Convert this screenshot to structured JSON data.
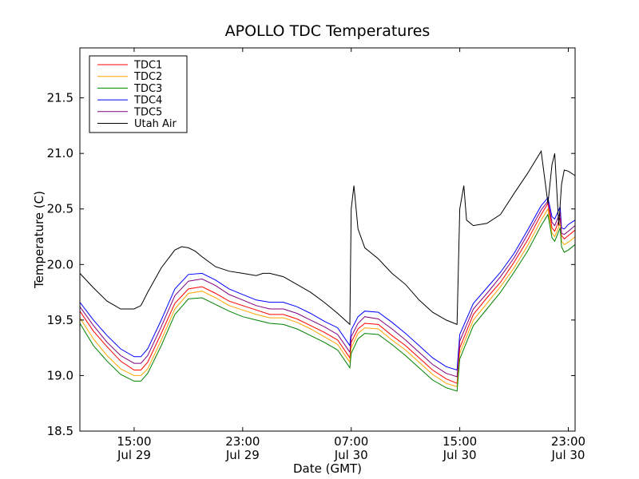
{
  "chart_data": {
    "type": "line",
    "title": "APOLLO TDC Temperatures",
    "xlabel": "Date (GMT)",
    "ylabel": "Temperature (C)",
    "x_unit": "hours since Jul 29 11:00 GMT",
    "xlim": [
      0,
      36.5
    ],
    "ylim": [
      18.5,
      21.95
    ],
    "y_ticks": [
      18.5,
      19.0,
      19.5,
      20.0,
      20.5,
      21.0,
      21.5
    ],
    "y_tick_labels": [
      "18.5",
      "19.0",
      "19.5",
      "20.0",
      "20.5",
      "21.0",
      "21.5"
    ],
    "x_ticks": [
      {
        "x": 4,
        "line1": "15:00",
        "line2": "Jul 29"
      },
      {
        "x": 12,
        "line1": "23:00",
        "line2": "Jul 29"
      },
      {
        "x": 20,
        "line1": "07:00",
        "line2": "Jul 30"
      },
      {
        "x": 28,
        "line1": "15:00",
        "line2": "Jul 30"
      },
      {
        "x": 36,
        "line1": "23:00",
        "line2": "Jul 30"
      }
    ],
    "legend_position": "top-left",
    "grid": false,
    "series": [
      {
        "name": "TDC1",
        "color": "#ff0000",
        "x": [
          0,
          1,
          2,
          3,
          4,
          4.5,
          5,
          6,
          7,
          8,
          9,
          10,
          11,
          12,
          13,
          14,
          15,
          16,
          17,
          18,
          19,
          19.9,
          20,
          20.5,
          21,
          22,
          23,
          24,
          25,
          26,
          27,
          27.8,
          28,
          29,
          30,
          31,
          32,
          33,
          34,
          34.5,
          34.8,
          35,
          35.4,
          35.5,
          35.7,
          36,
          36.5
        ],
        "y": [
          19.58,
          19.4,
          19.26,
          19.13,
          19.05,
          19.05,
          19.12,
          19.38,
          19.65,
          19.78,
          19.8,
          19.74,
          19.67,
          19.63,
          19.59,
          19.55,
          19.55,
          19.51,
          19.45,
          19.39,
          19.32,
          19.16,
          19.3,
          19.42,
          19.47,
          19.46,
          19.36,
          19.27,
          19.16,
          19.05,
          18.97,
          18.93,
          19.25,
          19.55,
          19.7,
          19.84,
          20.02,
          20.22,
          20.45,
          20.55,
          20.33,
          20.3,
          20.42,
          20.26,
          20.23,
          20.26,
          20.31
        ]
      },
      {
        "name": "TDC2",
        "color": "#ffa500",
        "x": [
          0,
          1,
          2,
          3,
          4,
          4.5,
          5,
          6,
          7,
          8,
          9,
          10,
          11,
          12,
          13,
          14,
          15,
          16,
          17,
          18,
          19,
          19.9,
          20,
          20.5,
          21,
          22,
          23,
          24,
          25,
          26,
          27,
          27.8,
          28,
          29,
          30,
          31,
          32,
          33,
          34,
          34.5,
          34.8,
          35,
          35.4,
          35.5,
          35.7,
          36,
          36.5
        ],
        "y": [
          19.52,
          19.33,
          19.18,
          19.06,
          19.0,
          19.0,
          19.06,
          19.32,
          19.6,
          19.74,
          19.76,
          19.7,
          19.63,
          19.59,
          19.55,
          19.52,
          19.52,
          19.48,
          19.42,
          19.35,
          19.28,
          19.12,
          19.25,
          19.38,
          19.43,
          19.42,
          19.32,
          19.23,
          19.12,
          19.01,
          18.93,
          18.9,
          19.2,
          19.5,
          19.65,
          19.8,
          19.97,
          20.17,
          20.4,
          20.5,
          20.28,
          20.25,
          20.37,
          20.21,
          20.18,
          20.2,
          20.25
        ]
      },
      {
        "name": "TDC3",
        "color": "#008000",
        "x": [
          0,
          1,
          2,
          3,
          4,
          4.5,
          5,
          6,
          7,
          8,
          9,
          10,
          11,
          12,
          13,
          14,
          15,
          16,
          17,
          18,
          19,
          19.9,
          20,
          20.5,
          21,
          22,
          23,
          24,
          25,
          26,
          27,
          27.8,
          28,
          29,
          30,
          31,
          32,
          33,
          34,
          34.5,
          34.8,
          35,
          35.4,
          35.5,
          35.7,
          36,
          36.5
        ],
        "y": [
          19.47,
          19.27,
          19.13,
          19.01,
          18.95,
          18.95,
          19.02,
          19.27,
          19.55,
          19.69,
          19.7,
          19.64,
          19.58,
          19.53,
          19.5,
          19.47,
          19.46,
          19.42,
          19.36,
          19.3,
          19.23,
          19.07,
          19.2,
          19.33,
          19.38,
          19.37,
          19.28,
          19.18,
          19.07,
          18.96,
          18.89,
          18.86,
          19.15,
          19.45,
          19.6,
          19.75,
          19.93,
          20.12,
          20.35,
          20.45,
          20.24,
          20.21,
          20.33,
          20.16,
          20.11,
          20.13,
          20.18
        ]
      },
      {
        "name": "TDC4",
        "color": "#0000ff",
        "x": [
          0,
          1,
          2,
          3,
          4,
          4.5,
          5,
          6,
          7,
          8,
          9,
          10,
          11,
          12,
          13,
          14,
          15,
          16,
          17,
          18,
          19,
          19.9,
          20,
          20.5,
          21,
          22,
          23,
          24,
          25,
          26,
          27,
          27.8,
          28,
          29,
          30,
          31,
          32,
          33,
          34,
          34.5,
          34.8,
          35,
          35.4,
          35.5,
          35.7,
          36,
          36.5
        ],
        "y": [
          19.66,
          19.5,
          19.36,
          19.24,
          19.17,
          19.17,
          19.24,
          19.5,
          19.78,
          19.91,
          19.92,
          19.86,
          19.78,
          19.73,
          19.68,
          19.66,
          19.66,
          19.62,
          19.56,
          19.49,
          19.43,
          19.27,
          19.41,
          19.53,
          19.58,
          19.57,
          19.48,
          19.38,
          19.27,
          19.16,
          19.08,
          19.05,
          19.37,
          19.65,
          19.79,
          19.93,
          20.1,
          20.31,
          20.53,
          20.6,
          20.43,
          20.41,
          20.52,
          20.33,
          20.32,
          20.36,
          20.4
        ]
      },
      {
        "name": "TDC5",
        "color": "#800080",
        "x": [
          0,
          1,
          2,
          3,
          4,
          4.5,
          5,
          6,
          7,
          8,
          9,
          10,
          11,
          12,
          13,
          14,
          15,
          16,
          17,
          18,
          19,
          19.9,
          20,
          20.5,
          21,
          22,
          23,
          24,
          25,
          26,
          27,
          27.8,
          28,
          29,
          30,
          31,
          32,
          33,
          34,
          34.5,
          34.8,
          35,
          35.4,
          35.5,
          35.7,
          36,
          36.5
        ],
        "y": [
          19.62,
          19.45,
          19.3,
          19.18,
          19.11,
          19.11,
          19.18,
          19.44,
          19.72,
          19.85,
          19.87,
          19.81,
          19.73,
          19.68,
          19.63,
          19.6,
          19.6,
          19.56,
          19.5,
          19.44,
          19.37,
          19.21,
          19.35,
          19.47,
          19.53,
          19.51,
          19.42,
          19.32,
          19.21,
          19.1,
          19.02,
          18.99,
          19.31,
          19.6,
          19.74,
          19.89,
          20.06,
          20.27,
          20.49,
          20.57,
          20.38,
          20.35,
          20.47,
          20.28,
          20.27,
          20.3,
          20.35
        ]
      },
      {
        "name": "Utah Air",
        "color": "#000000",
        "x": [
          0,
          1,
          2,
          3,
          4,
          4.5,
          5,
          6,
          7,
          7.5,
          8,
          8.5,
          9,
          10,
          11,
          12,
          13,
          13.5,
          14,
          15,
          16,
          17,
          18,
          19,
          19.9,
          20,
          20.2,
          20.5,
          21,
          22,
          23,
          24,
          25,
          26,
          27,
          27.8,
          28,
          28.3,
          28.5,
          29,
          30,
          31,
          32,
          33,
          34,
          34.5,
          34.8,
          35,
          35.3,
          35.5,
          35.7,
          36,
          36.5
        ],
        "y": [
          19.92,
          19.79,
          19.67,
          19.6,
          19.6,
          19.63,
          19.75,
          19.97,
          20.13,
          20.16,
          20.15,
          20.12,
          20.07,
          19.98,
          19.94,
          19.92,
          19.9,
          19.92,
          19.92,
          19.89,
          19.82,
          19.75,
          19.66,
          19.56,
          19.46,
          20.5,
          20.71,
          20.32,
          20.15,
          20.05,
          19.92,
          19.82,
          19.68,
          19.57,
          19.5,
          19.46,
          20.5,
          20.71,
          20.4,
          20.35,
          20.37,
          20.45,
          20.64,
          20.82,
          21.02,
          20.55,
          20.9,
          21.0,
          20.35,
          20.72,
          20.85,
          20.84,
          20.8
        ]
      }
    ]
  }
}
